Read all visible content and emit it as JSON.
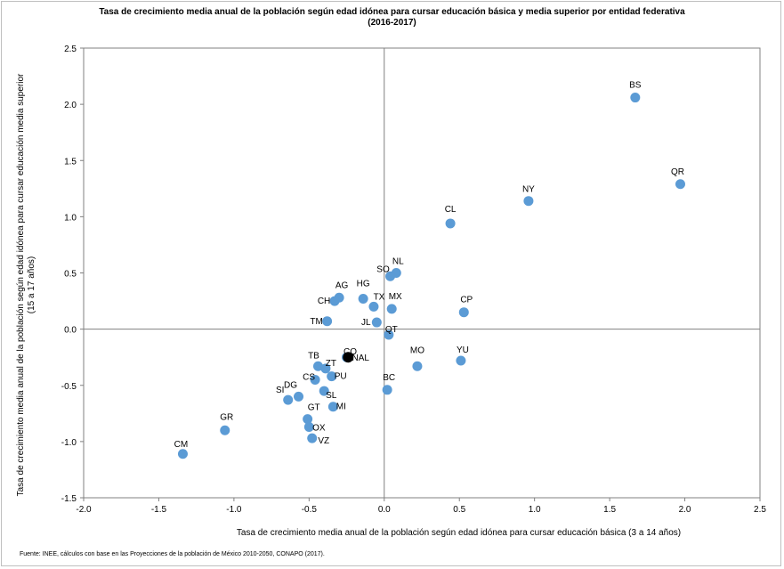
{
  "chart_data": {
    "type": "scatter",
    "title_line1": "Tasa de crecimiento media anual de la población según edad idónea para cursar educación básica y media superior por entidad federativa",
    "title_line2": "(2016-2017)",
    "xlabel": "Tasa de crecimiento media anual de la población según edad idónea para cursar educación básica (3 a 14 años)",
    "ylabel_line1": "Tasa de crecimiento media anual de la población según edad idónea para cursar educación media superior",
    "ylabel_line2": "(15 a 17 años)",
    "source": "Fuente: INEE, cálculos con base en las Proyecciones de la población de México 2010-2050, CONAPO (2017).",
    "xlim": [
      -2.0,
      2.5
    ],
    "ylim": [
      -1.5,
      2.5
    ],
    "x_ticks": [
      "-2.0",
      "-1.5",
      "-1.0",
      "-0.5",
      "0.0",
      "0.5",
      "1.0",
      "1.5",
      "2.0",
      "2.5"
    ],
    "y_ticks": [
      "2.5",
      "2.0",
      "1.5",
      "1.0",
      "0.5",
      "0.0",
      "-0.5",
      "-1.0",
      "-1.5"
    ],
    "point_color": "#5b9bd5",
    "national_color": "#000000",
    "points": [
      {
        "label": "BS",
        "x": 1.67,
        "y": 2.06
      },
      {
        "label": "QR",
        "x": 1.97,
        "y": 1.29
      },
      {
        "label": "NY",
        "x": 0.96,
        "y": 1.14
      },
      {
        "label": "CL",
        "x": 0.44,
        "y": 0.94
      },
      {
        "label": "NL",
        "x": 0.08,
        "y": 0.5
      },
      {
        "label": "SO",
        "x": 0.04,
        "y": 0.47
      },
      {
        "label": "AG",
        "x": -0.3,
        "y": 0.28
      },
      {
        "label": "CH",
        "x": -0.33,
        "y": 0.25
      },
      {
        "label": "HG",
        "x": -0.14,
        "y": 0.27
      },
      {
        "label": "TX",
        "x": -0.07,
        "y": 0.2
      },
      {
        "label": "MX",
        "x": 0.05,
        "y": 0.18
      },
      {
        "label": "CP",
        "x": 0.53,
        "y": 0.15
      },
      {
        "label": "TM",
        "x": -0.38,
        "y": 0.07
      },
      {
        "label": "JL",
        "x": -0.05,
        "y": 0.06
      },
      {
        "label": "QT",
        "x": 0.03,
        "y": -0.05
      },
      {
        "label": "CO",
        "x": -0.25,
        "y": -0.25
      },
      {
        "label": "TB",
        "x": -0.44,
        "y": -0.33
      },
      {
        "label": "ZT",
        "x": -0.39,
        "y": -0.35
      },
      {
        "label": "PU",
        "x": -0.35,
        "y": -0.42
      },
      {
        "label": "CS",
        "x": -0.46,
        "y": -0.45
      },
      {
        "label": "MO",
        "x": 0.22,
        "y": -0.33
      },
      {
        "label": "YU",
        "x": 0.51,
        "y": -0.28
      },
      {
        "label": "BC",
        "x": 0.02,
        "y": -0.54
      },
      {
        "label": "DG",
        "x": -0.57,
        "y": -0.6
      },
      {
        "label": "SL",
        "x": -0.4,
        "y": -0.55
      },
      {
        "label": "SI",
        "x": -0.64,
        "y": -0.63
      },
      {
        "label": "MI",
        "x": -0.34,
        "y": -0.69
      },
      {
        "label": "GT",
        "x": -0.51,
        "y": -0.8
      },
      {
        "label": "OX",
        "x": -0.5,
        "y": -0.87
      },
      {
        "label": "VZ",
        "x": -0.48,
        "y": -0.97
      },
      {
        "label": "GR",
        "x": -1.06,
        "y": -0.9
      },
      {
        "label": "CM",
        "x": -1.34,
        "y": -1.11
      },
      {
        "label": "NAL",
        "x": -0.24,
        "y": -0.25,
        "national": true
      }
    ]
  }
}
